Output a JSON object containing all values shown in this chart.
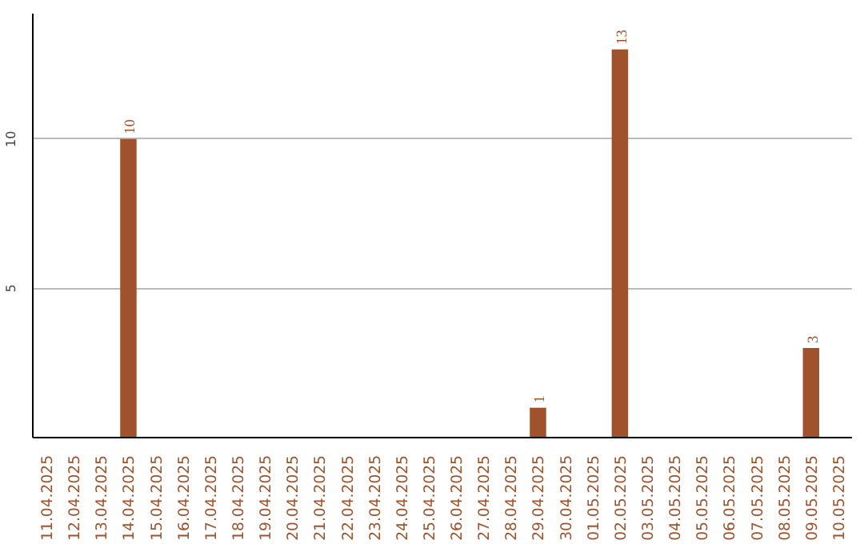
{
  "chart_data": {
    "type": "bar",
    "categories": [
      "11.04.2025",
      "12.04.2025",
      "13.04.2025",
      "14.04.2025",
      "15.04.2025",
      "16.04.2025",
      "17.04.2025",
      "18.04.2025",
      "19.04.2025",
      "20.04.2025",
      "21.04.2025",
      "22.04.2025",
      "23.04.2025",
      "24.04.2025",
      "25.04.2025",
      "26.04.2025",
      "27.04.2025",
      "28.04.2025",
      "29.04.2025",
      "30.04.2025",
      "01.05.2025",
      "02.05.2025",
      "03.05.2025",
      "04.05.2025",
      "05.05.2025",
      "06.05.2025",
      "07.05.2025",
      "08.05.2025",
      "09.05.2025",
      "10.05.2025"
    ],
    "values": [
      0,
      0,
      0,
      10,
      0,
      0,
      0,
      0,
      0,
      0,
      0,
      0,
      0,
      0,
      0,
      0,
      0,
      0,
      1,
      0,
      0,
      13,
      0,
      0,
      0,
      0,
      0,
      0,
      3,
      0
    ],
    "value_labels": [
      null,
      null,
      null,
      "10",
      null,
      null,
      null,
      null,
      null,
      null,
      null,
      null,
      null,
      null,
      null,
      null,
      null,
      null,
      "1",
      null,
      null,
      "13",
      null,
      null,
      null,
      null,
      null,
      null,
      "3",
      null
    ],
    "color": "#a0522d",
    "ylim": [
      0,
      14.2
    ],
    "yticks": [
      5,
      10
    ],
    "grid": "y"
  }
}
